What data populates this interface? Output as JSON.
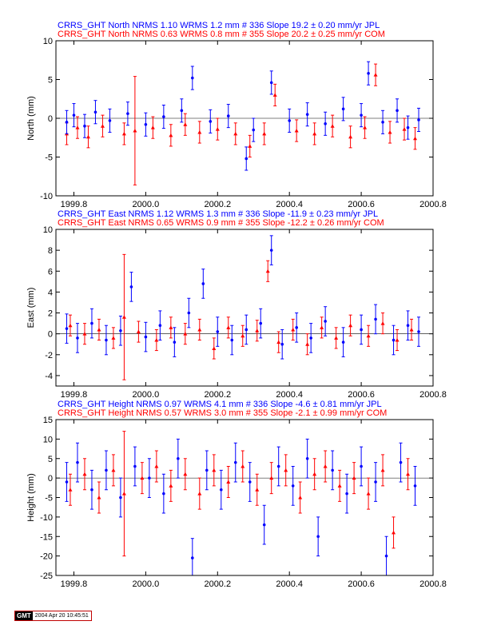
{
  "colors": {
    "jpl": "#0000ff",
    "com": "#ff0000",
    "axis": "#000000",
    "stamp_border": "#c00000"
  },
  "footer": {
    "logo": "GMT",
    "timestamp": "2004 Apr 20 10:45:51"
  },
  "chart_data": [
    {
      "type": "scatter",
      "title_lines": [
        "CRRS_GHT North NRMS 1.10 WRMS  1.2 mm # 336 Slope   19.2 ±  0.20 mm/yr JPL",
        "CRRS_GHT North NRMS 0.63 WRMS  0.8 mm # 355 Slope   20.2 ±  0.25 mm/yr COM"
      ],
      "xlabel": "",
      "ylabel": "North (mm)",
      "xlim": [
        1999.75,
        2000.8
      ],
      "ylim": [
        -10,
        10
      ],
      "xticks": [
        "1999.8",
        "2000.0",
        "2000.2",
        "2000.4",
        "2000.6",
        "2000.8"
      ],
      "yticks": [
        "-10",
        "-5",
        "0",
        "5",
        "10"
      ],
      "grid": false,
      "series": [
        {
          "name": "JPL",
          "color": "#0000ff",
          "x": [
            1999.78,
            1999.8,
            1999.83,
            1999.86,
            1999.9,
            1999.95,
            2000.0,
            2000.05,
            2000.1,
            2000.13,
            2000.18,
            2000.23,
            2000.28,
            2000.3,
            2000.35,
            2000.4,
            2000.45,
            2000.5,
            2000.55,
            2000.6,
            2000.62,
            2000.66,
            2000.7,
            2000.73,
            2000.76
          ],
          "y": [
            -0.5,
            0.4,
            -1.0,
            0.8,
            -0.3,
            0.6,
            -0.8,
            0.2,
            1.0,
            5.2,
            -0.4,
            0.3,
            -5.2,
            -1.5,
            4.6,
            -0.3,
            0.5,
            -0.7,
            1.2,
            0.4,
            5.8,
            -0.5,
            1.0,
            -1.2,
            -0.2
          ],
          "err": [
            1.5,
            1.5,
            1.5,
            1.5,
            1.5,
            1.5,
            1.5,
            1.5,
            1.5,
            1.5,
            1.5,
            1.5,
            1.5,
            1.5,
            1.5,
            1.5,
            1.5,
            1.5,
            1.5,
            1.5,
            1.5,
            1.5,
            1.5,
            1.5,
            1.5
          ]
        },
        {
          "name": "COM",
          "color": "#ff0000",
          "x": [
            1999.78,
            1999.81,
            1999.84,
            1999.88,
            1999.94,
            1999.97,
            2000.02,
            2000.07,
            2000.11,
            2000.15,
            2000.2,
            2000.25,
            2000.29,
            2000.33,
            2000.36,
            2000.42,
            2000.47,
            2000.52,
            2000.57,
            2000.61,
            2000.64,
            2000.68,
            2000.72,
            2000.75
          ],
          "y": [
            -2.0,
            -1.2,
            -2.4,
            -1.0,
            -2.0,
            -1.6,
            -1.2,
            -2.2,
            -0.8,
            -1.8,
            -1.4,
            -2.0,
            -3.6,
            -2.0,
            3.0,
            -1.6,
            -2.0,
            -1.0,
            -2.4,
            -1.2,
            5.6,
            -1.8,
            -1.4,
            -2.6
          ],
          "err": [
            1.4,
            1.4,
            1.4,
            1.4,
            1.4,
            7.0,
            1.4,
            1.4,
            1.4,
            1.4,
            1.4,
            1.4,
            1.4,
            1.4,
            1.4,
            1.4,
            1.4,
            1.4,
            1.4,
            1.4,
            1.4,
            1.4,
            1.4,
            1.4
          ]
        }
      ]
    },
    {
      "type": "scatter",
      "title_lines": [
        "CRRS_GHT East NRMS 1.12 WRMS  1.3 mm # 336 Slope  -11.9 ±  0.23 mm/yr JPL",
        "CRRS_GHT East NRMS 0.65 WRMS  0.9 mm # 355 Slope  -12.2 ±  0.26 mm/yr COM"
      ],
      "xlabel": "",
      "ylabel": "East (mm)",
      "xlim": [
        1999.75,
        2000.8
      ],
      "ylim": [
        -5,
        10
      ],
      "xticks": [
        "1999.8",
        "2000.0",
        "2000.2",
        "2000.4",
        "2000.6",
        "2000.8"
      ],
      "yticks": [
        "-4",
        "-2",
        "0",
        "2",
        "4",
        "6",
        "8",
        "10"
      ],
      "grid": false,
      "series": [
        {
          "name": "JPL",
          "color": "#0000ff",
          "x": [
            1999.78,
            1999.81,
            1999.85,
            1999.89,
            1999.93,
            1999.96,
            2000.0,
            2000.04,
            2000.08,
            2000.12,
            2000.16,
            2000.2,
            2000.24,
            2000.28,
            2000.32,
            2000.35,
            2000.38,
            2000.42,
            2000.46,
            2000.5,
            2000.55,
            2000.6,
            2000.64,
            2000.69,
            2000.73,
            2000.76
          ],
          "y": [
            0.5,
            -0.4,
            1.0,
            -0.6,
            0.3,
            4.5,
            -0.3,
            0.8,
            -0.8,
            2.0,
            4.8,
            0.2,
            -0.6,
            0.4,
            1.0,
            8.0,
            -1.0,
            0.6,
            -0.4,
            1.2,
            -0.8,
            0.4,
            1.4,
            -0.6,
            0.8,
            0.2
          ],
          "err": [
            1.4,
            1.4,
            1.4,
            1.4,
            1.4,
            1.4,
            1.4,
            1.4,
            1.4,
            1.4,
            1.4,
            1.4,
            1.4,
            1.4,
            1.4,
            1.4,
            1.4,
            1.4,
            1.4,
            1.4,
            1.4,
            1.4,
            1.4,
            1.4,
            1.4,
            1.4
          ]
        },
        {
          "name": "COM",
          "color": "#ff0000",
          "x": [
            1999.79,
            1999.83,
            1999.87,
            1999.91,
            1999.94,
            1999.98,
            2000.03,
            2000.07,
            2000.11,
            2000.15,
            2000.19,
            2000.23,
            2000.27,
            2000.31,
            2000.34,
            2000.37,
            2000.41,
            2000.45,
            2000.49,
            2000.53,
            2000.57,
            2000.62,
            2000.66,
            2000.7,
            2000.74
          ],
          "y": [
            0.8,
            0.0,
            0.4,
            -0.4,
            1.6,
            0.2,
            -0.6,
            0.6,
            0.0,
            0.4,
            -1.4,
            0.6,
            -0.2,
            0.3,
            6.0,
            -0.8,
            0.4,
            -1.0,
            0.6,
            -0.4,
            0.8,
            -0.2,
            1.0,
            -0.6,
            0.4
          ],
          "err": [
            1.0,
            1.0,
            1.0,
            1.0,
            6.0,
            1.0,
            1.0,
            1.0,
            1.0,
            1.0,
            1.0,
            1.0,
            1.0,
            1.0,
            1.0,
            1.0,
            1.0,
            1.0,
            1.0,
            1.0,
            1.0,
            1.0,
            1.0,
            1.0,
            1.0
          ]
        }
      ]
    },
    {
      "type": "scatter",
      "title_lines": [
        "CRRS_GHT Height NRMS 0.97 WRMS  4.1 mm # 336 Slope   -4.6 ±  0.81 mm/yr JPL",
        "CRRS_GHT Height NRMS 0.57 WRMS  3.0 mm # 355 Slope   -2.1 ±  0.99 mm/yr COM"
      ],
      "xlabel": "",
      "ylabel": "Height (mm)",
      "xlim": [
        1999.75,
        2000.8
      ],
      "ylim": [
        -25,
        15
      ],
      "xticks": [
        "1999.8",
        "2000.0",
        "2000.2",
        "2000.4",
        "2000.6",
        "2000.8"
      ],
      "yticks": [
        "-25",
        "-20",
        "-15",
        "-10",
        "-5",
        "0",
        "5",
        "10",
        "15"
      ],
      "grid": false,
      "series": [
        {
          "name": "JPL",
          "color": "#0000ff",
          "x": [
            1999.78,
            1999.81,
            1999.85,
            1999.89,
            1999.93,
            1999.97,
            2000.01,
            2000.05,
            2000.09,
            2000.13,
            2000.17,
            2000.21,
            2000.25,
            2000.29,
            2000.33,
            2000.37,
            2000.41,
            2000.45,
            2000.48,
            2000.52,
            2000.56,
            2000.6,
            2000.64,
            2000.67,
            2000.71,
            2000.75
          ],
          "y": [
            -1.0,
            4.0,
            -3.0,
            2.0,
            -5.0,
            3.0,
            0.0,
            -4.0,
            5.0,
            -20.5,
            2.0,
            -3.0,
            4.0,
            -1.0,
            -12.0,
            3.0,
            -2.0,
            5.0,
            -15.0,
            2.0,
            -4.0,
            3.0,
            -1.0,
            -20.0,
            4.0,
            -2.0
          ],
          "err": [
            5,
            5,
            5,
            5,
            5,
            5,
            5,
            5,
            5,
            5,
            5,
            5,
            5,
            5,
            5,
            5,
            5,
            5,
            5,
            5,
            5,
            5,
            5,
            5,
            5,
            5
          ]
        },
        {
          "name": "COM",
          "color": "#ff0000",
          "x": [
            1999.79,
            1999.83,
            1999.87,
            1999.91,
            1999.94,
            1999.99,
            2000.03,
            2000.07,
            2000.11,
            2000.15,
            2000.19,
            2000.23,
            2000.27,
            2000.31,
            2000.35,
            2000.39,
            2000.43,
            2000.47,
            2000.5,
            2000.54,
            2000.58,
            2000.62,
            2000.66,
            2000.69,
            2000.73
          ],
          "y": [
            -3.0,
            1.0,
            -5.0,
            2.0,
            -4.0,
            0.0,
            3.0,
            -2.0,
            1.0,
            -4.0,
            2.0,
            -1.0,
            3.0,
            -3.0,
            0.0,
            2.0,
            -5.0,
            1.0,
            3.0,
            -2.0,
            0.0,
            -4.0,
            2.0,
            -14.0,
            1.0
          ],
          "err": [
            4,
            4,
            4,
            4,
            16,
            4,
            4,
            4,
            4,
            4,
            4,
            4,
            4,
            4,
            4,
            4,
            4,
            4,
            4,
            4,
            4,
            4,
            4,
            4,
            4
          ]
        }
      ]
    }
  ]
}
